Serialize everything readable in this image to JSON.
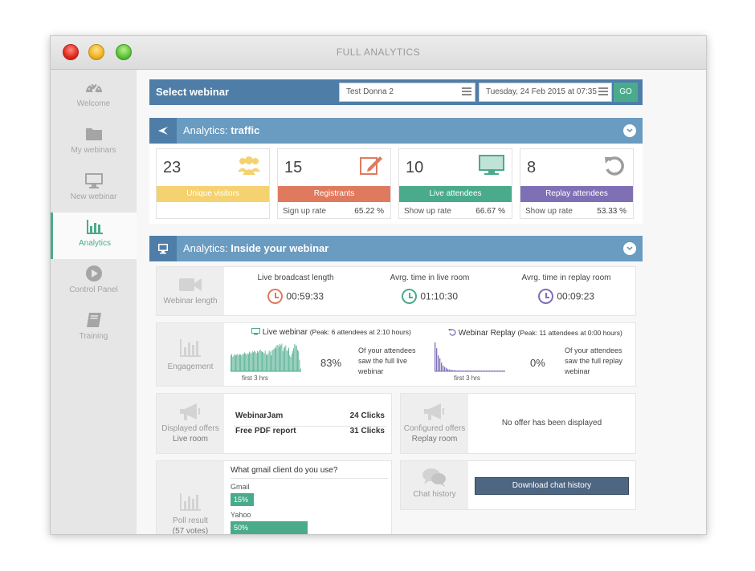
{
  "window": {
    "title": "FULL ANALYTICS"
  },
  "sidebar": {
    "items": [
      {
        "label": "Welcome",
        "icon": "dashboard-icon"
      },
      {
        "label": "My webinars",
        "icon": "folder-icon"
      },
      {
        "label": "New webinar",
        "icon": "monitor-icon"
      },
      {
        "label": "Analytics",
        "icon": "bar-chart-icon",
        "active": true
      },
      {
        "label": "Control Panel",
        "icon": "play-circle-icon"
      },
      {
        "label": "Training",
        "icon": "book-icon"
      }
    ]
  },
  "select": {
    "title": "Select webinar",
    "webinar": "Test Donna 2",
    "date": "Tuesday, 24 Feb 2015 at 07:35",
    "go": "GO"
  },
  "traffic": {
    "heading_prefix": "Analytics: ",
    "heading": "traffic",
    "cards": [
      {
        "value": "23",
        "label": "Unique visitors",
        "color": "#f5d270",
        "icon": "users-icon"
      },
      {
        "value": "15",
        "label": "Registrants",
        "color": "#e07a5f",
        "icon": "edit-icon",
        "rate_label": "Sign up rate",
        "rate": "65.22 %"
      },
      {
        "value": "10",
        "label": "Live attendees",
        "color": "#4aab8c",
        "icon": "monitor-icon",
        "rate_label": "Show up rate",
        "rate": "66.67 %"
      },
      {
        "value": "8",
        "label": "Replay attendees",
        "color": "#7f6fb5",
        "icon": "replay-icon",
        "rate_label": "Show up rate",
        "rate": "53.33 %"
      }
    ]
  },
  "inside": {
    "heading_prefix": "Analytics: ",
    "heading": "Inside your webinar",
    "length": {
      "label": "Webinar length",
      "items": [
        {
          "title": "Live broadcast length",
          "value": "00:59:33",
          "color": "#e07a5f"
        },
        {
          "title": "Avrg. time in live room",
          "value": "01:10:30",
          "color": "#4aab8c"
        },
        {
          "title": "Avrg. time in replay room",
          "value": "00:09:23",
          "color": "#7f6fb5"
        }
      ]
    },
    "engagement": {
      "label": "Engagement",
      "live": {
        "title": "Live webinar",
        "peak": "(Peak: 6 attendees at 2:10 hours)",
        "axis": "first 3 hrs",
        "percent": "83%",
        "text": "Of your attendees saw the full live webinar",
        "bars": [
          0.55,
          0.6,
          0.5,
          0.55,
          0.6,
          0.55,
          0.58,
          0.6,
          0.55,
          0.6,
          0.58,
          0.55,
          0.6,
          0.6,
          0.65,
          0.62,
          0.58,
          0.62,
          0.6,
          0.68,
          0.65,
          0.62,
          0.7,
          0.66,
          0.72,
          0.68,
          0.62,
          0.7,
          0.65,
          0.72,
          0.75,
          0.7,
          0.68,
          0.66,
          0.62,
          0.72,
          0.6,
          0.55,
          0.62,
          0.72,
          0.68,
          0.55,
          0.72,
          0.75,
          0.78,
          0.85,
          0.8,
          0.9,
          0.92,
          0.85,
          0.95,
          0.9,
          0.96,
          0.7,
          0.8,
          0.85,
          0.9,
          0.7,
          0.75,
          0.82,
          0.55,
          0.5,
          0.6,
          0.7,
          0.8,
          0.95,
          0.9,
          0.88,
          0.75,
          0.7,
          0.4,
          0.1
        ]
      },
      "replay": {
        "title": "Webinar Replay",
        "peak": "(Peak: 11 attendees at 0:00 hours)",
        "axis": "first 3 hrs",
        "percent": "0%",
        "text": "Of your attendees saw the full replay webinar",
        "bars": [
          1.0,
          0.8,
          0.55,
          0.45,
          0.3,
          0.2,
          0.15,
          0.12,
          0.08,
          0.06,
          0.05,
          0.04,
          0.04,
          0.03,
          0.03,
          0.03,
          0.02,
          0.02,
          0.02,
          0.02,
          0.02,
          0.02,
          0.02,
          0.02,
          0.02,
          0.02,
          0.02,
          0.02,
          0.02,
          0.02,
          0.02,
          0.02,
          0.02,
          0.02,
          0.02,
          0.02,
          0.02,
          0.02,
          0.02,
          0.02,
          0.02,
          0.02,
          0.02,
          0.02
        ]
      }
    },
    "displayed_offers": {
      "label1": "Displayed offers",
      "label2": "Live room",
      "rows": [
        {
          "name": "WebinarJam",
          "clicks": "24 Clicks"
        },
        {
          "name": "Free PDF report",
          "clicks": "31 Clicks"
        }
      ]
    },
    "configured_offers": {
      "label1": "Configured offers",
      "label2": "Replay room",
      "empty": "No offer has been displayed"
    },
    "poll": {
      "label1": "Poll result",
      "label2": "(57 votes)",
      "question": "What gmail client do you use?",
      "options": [
        {
          "name": "Gmail",
          "percent": "15%",
          "value": 0.15
        },
        {
          "name": "Yahoo",
          "percent": "50%",
          "value": 0.5
        }
      ]
    },
    "chat": {
      "label": "Chat history",
      "button": "Download chat history"
    }
  }
}
